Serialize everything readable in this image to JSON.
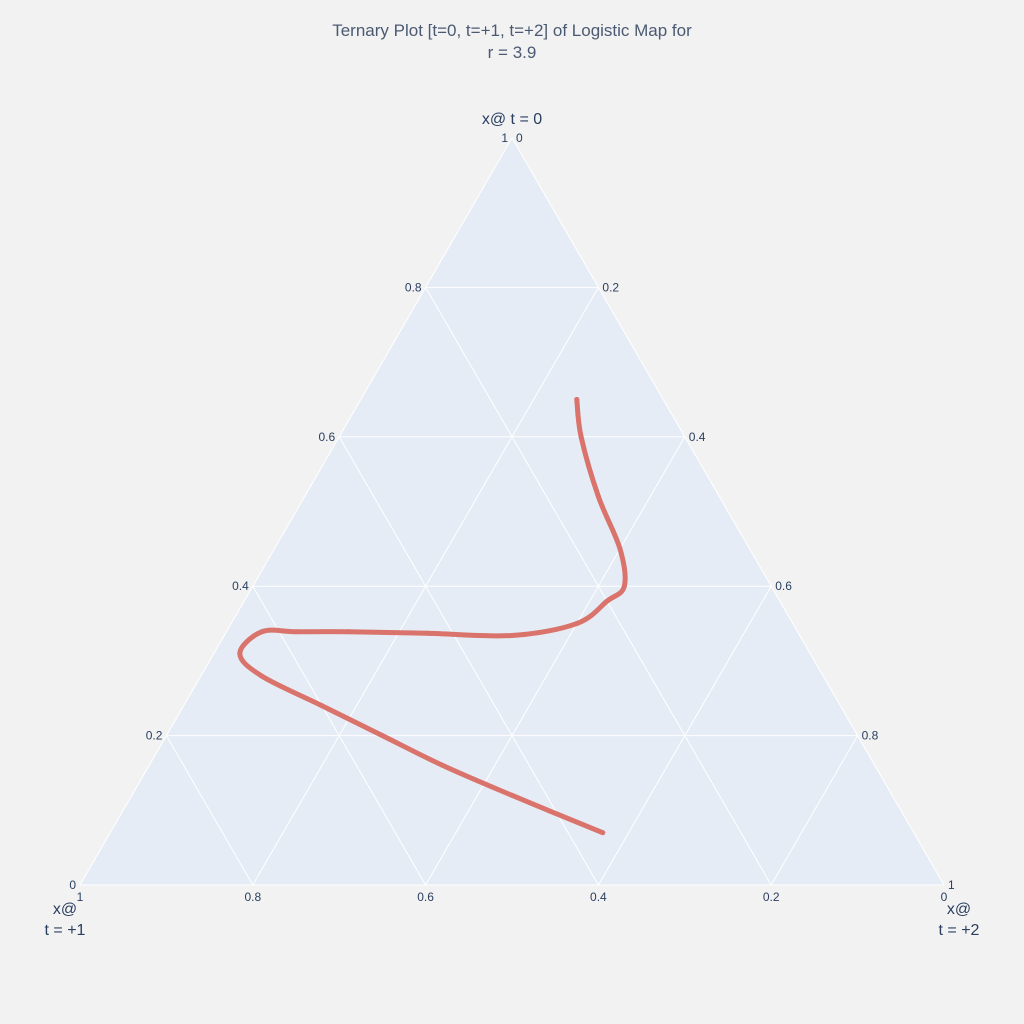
{
  "chart_data": {
    "type": "ternary-line",
    "title_line1": "Ternary Plot [t=0, t=+1, t=+2] of Logistic Map for",
    "title_line2": "r = 3.9",
    "axes": {
      "a": {
        "title": "x@ t = 0",
        "min": 0,
        "max": 1
      },
      "b": {
        "title_line1": "x@",
        "title_line2": "t = +1",
        "min": 0,
        "max": 1
      },
      "c": {
        "title_line1": "x@",
        "title_line2": "t = +2",
        "min": 0,
        "max": 1
      }
    },
    "tick_values": [
      0,
      0.2,
      0.4,
      0.6,
      0.8,
      1
    ],
    "tick_labels": [
      "0",
      "0.2",
      "0.4",
      "0.6",
      "0.8",
      "1"
    ],
    "grid": true,
    "colors": {
      "background": "#f2f2f2",
      "plot_bg": "#e5ecf6",
      "line": "#d9736b",
      "text": "#2a3f5f"
    },
    "series": [
      {
        "points": [
          {
            "a": 0.65,
            "b": 0.1,
            "c": 0.25
          },
          {
            "a": 0.6,
            "b": 0.12,
            "c": 0.28
          },
          {
            "a": 0.52,
            "b": 0.14,
            "c": 0.34
          },
          {
            "a": 0.45,
            "b": 0.15,
            "c": 0.4
          },
          {
            "a": 0.4,
            "b": 0.17,
            "c": 0.43
          },
          {
            "a": 0.38,
            "b": 0.2,
            "c": 0.42
          },
          {
            "a": 0.35,
            "b": 0.25,
            "c": 0.4
          },
          {
            "a": 0.334,
            "b": 0.333,
            "c": 0.333
          },
          {
            "a": 0.337,
            "b": 0.43,
            "c": 0.233
          },
          {
            "a": 0.339,
            "b": 0.52,
            "c": 0.141
          },
          {
            "a": 0.339,
            "b": 0.58,
            "c": 0.081
          },
          {
            "a": 0.339,
            "b": 0.62,
            "c": 0.041
          },
          {
            "a": 0.31,
            "b": 0.66,
            "c": 0.03
          },
          {
            "a": 0.28,
            "b": 0.65,
            "c": 0.07
          },
          {
            "a": 0.24,
            "b": 0.6,
            "c": 0.16
          },
          {
            "a": 0.2,
            "b": 0.55,
            "c": 0.25
          },
          {
            "a": 0.16,
            "b": 0.5,
            "c": 0.34
          },
          {
            "a": 0.12,
            "b": 0.44,
            "c": 0.44
          },
          {
            "a": 0.07,
            "b": 0.36,
            "c": 0.57
          }
        ]
      }
    ]
  }
}
